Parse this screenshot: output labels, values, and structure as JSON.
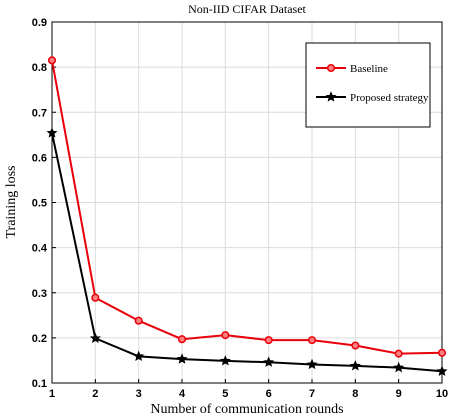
{
  "chart_data": {
    "type": "line",
    "title": "Non-IID CIFAR Dataset",
    "xlabel": "Number of communication rounds",
    "ylabel": "Training loss",
    "x": [
      1,
      2,
      3,
      4,
      5,
      6,
      7,
      8,
      9,
      10
    ],
    "xlim": [
      1,
      10
    ],
    "ylim": [
      0.1,
      0.9
    ],
    "xticks": [
      1,
      2,
      3,
      4,
      5,
      6,
      7,
      8,
      9,
      10
    ],
    "yticks": [
      0.1,
      0.2,
      0.3,
      0.4,
      0.5,
      0.6,
      0.7,
      0.8,
      0.9
    ],
    "grid": true,
    "legend_position": "top-right",
    "series": [
      {
        "name": "Baseline",
        "color": "#e8000b",
        "marker": "circle",
        "values": [
          0.815,
          0.289,
          0.238,
          0.197,
          0.206,
          0.195,
          0.195,
          0.183,
          0.165,
          0.167
        ]
      },
      {
        "name": "Proposed strategy",
        "color": "#000000",
        "marker": "star",
        "values": [
          0.654,
          0.199,
          0.159,
          0.153,
          0.149,
          0.146,
          0.141,
          0.138,
          0.134,
          0.126
        ]
      }
    ]
  }
}
